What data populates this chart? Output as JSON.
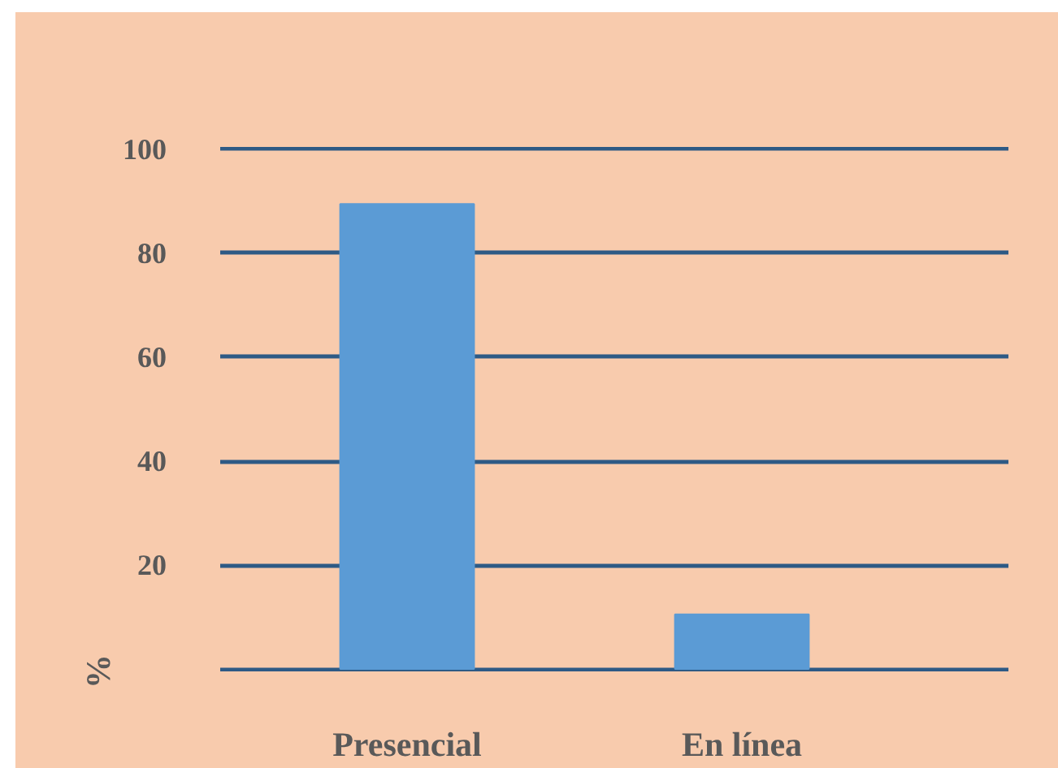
{
  "chart_data": {
    "type": "bar",
    "ylabel": "%",
    "categories": [
      "Presencial",
      "En línea"
    ],
    "values": [
      89.5,
      10.5
    ],
    "color": "#5b9bd5",
    "ylim": [
      0,
      100
    ],
    "yticks": [
      {
        "value": 0,
        "label": null
      },
      20,
      40,
      60,
      80,
      100
    ],
    "grid": "y"
  }
}
